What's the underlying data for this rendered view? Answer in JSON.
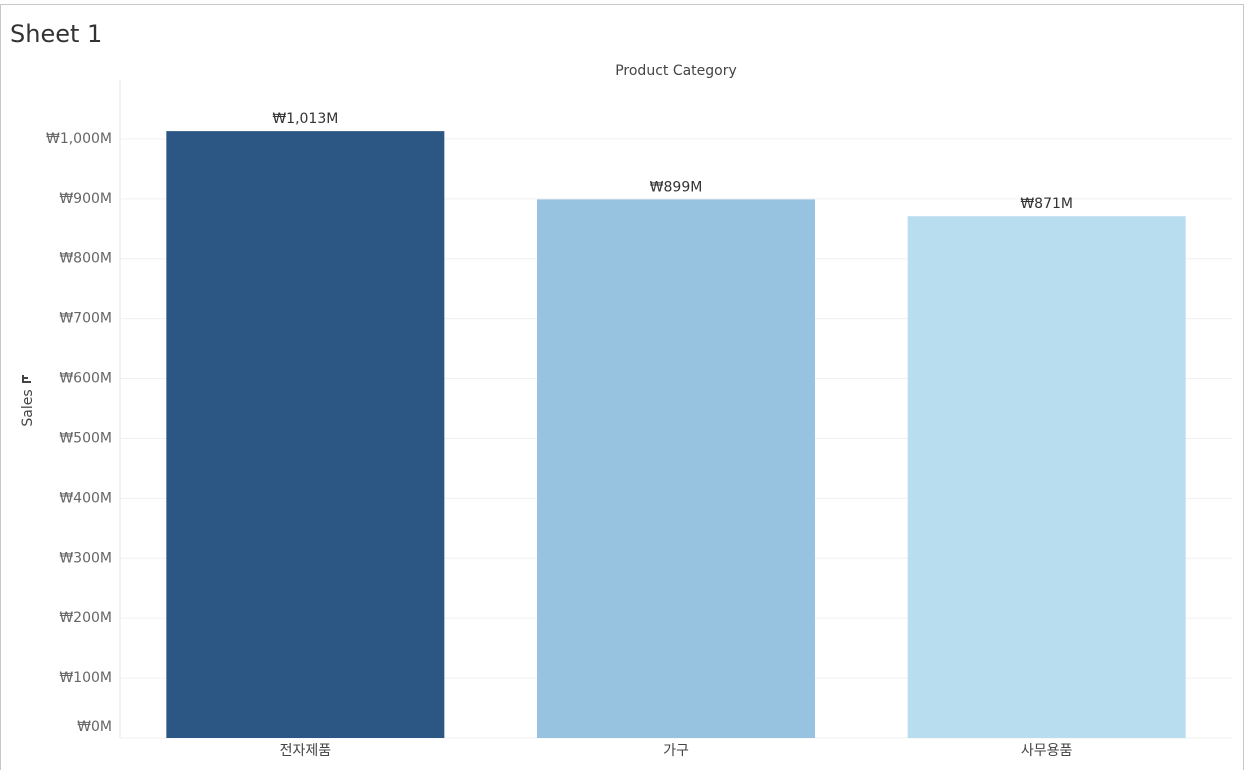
{
  "chart_data": {
    "type": "bar",
    "title": "Sheet 1",
    "x_label": "Product Category",
    "y_label": "Sales",
    "categories": [
      "전자제품",
      "가구",
      "사무용품"
    ],
    "values": [
      1013000000,
      899000000,
      871000000
    ],
    "value_labels": [
      "₩1,013M",
      "₩899M",
      "₩871M"
    ],
    "colors": [
      "#2c5784",
      "#97c3e1",
      "#b8ddef"
    ],
    "ylim": [
      0,
      1100000000
    ],
    "yticks": [
      {
        "value": 0,
        "label": "₩0M"
      },
      {
        "value": 100000000,
        "label": "₩100M"
      },
      {
        "value": 200000000,
        "label": "₩200M"
      },
      {
        "value": 300000000,
        "label": "₩300M"
      },
      {
        "value": 400000000,
        "label": "₩400M"
      },
      {
        "value": 500000000,
        "label": "₩500M"
      },
      {
        "value": 600000000,
        "label": "₩600M"
      },
      {
        "value": 700000000,
        "label": "₩700M"
      },
      {
        "value": 800000000,
        "label": "₩800M"
      },
      {
        "value": 900000000,
        "label": "₩900M"
      },
      {
        "value": 1000000000,
        "label": "₩1,000M"
      }
    ],
    "grid": true
  }
}
